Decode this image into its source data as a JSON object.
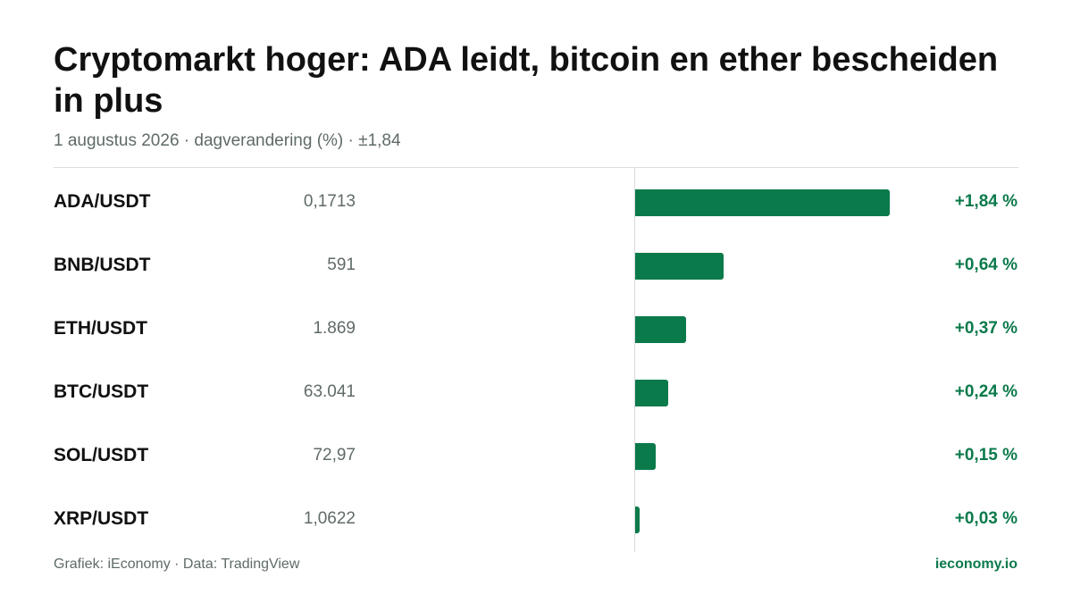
{
  "title": "Cryptomarkt hoger: ADA leidt, bitcoin en ether bescheiden in plus",
  "subtitle": "1 augustus 2026 · dagverandering (%) · ±1,84",
  "footer": {
    "source": "Grafiek: iEconomy · Data: TradingView",
    "brand": "ieconomy.io"
  },
  "colors": {
    "positive": "#0b7a4b",
    "text": "#111111",
    "muted": "#5f6b66"
  },
  "chart_data": {
    "type": "bar",
    "orientation": "horizontal",
    "title": "Cryptomarkt hoger: ADA leidt, bitcoin en ether bescheiden in plus",
    "subtitle": "1 augustus 2026 · dagverandering (%) · ±1,84",
    "xlim": [
      0,
      1.84
    ],
    "grid": false,
    "categories": [
      "ADA/USDT",
      "BNB/USDT",
      "ETH/USDT",
      "BTC/USDT",
      "SOL/USDT",
      "XRP/USDT"
    ],
    "prices": [
      "0,1713",
      "591",
      "1.869",
      "63.041",
      "72,97",
      "1,0622"
    ],
    "values": [
      1.84,
      0.64,
      0.37,
      0.24,
      0.15,
      0.03
    ],
    "value_labels": [
      "+1,84 %",
      "+0,64 %",
      "+0,37 %",
      "+0,24 %",
      "+0,15 %",
      "+0,03 %"
    ]
  }
}
